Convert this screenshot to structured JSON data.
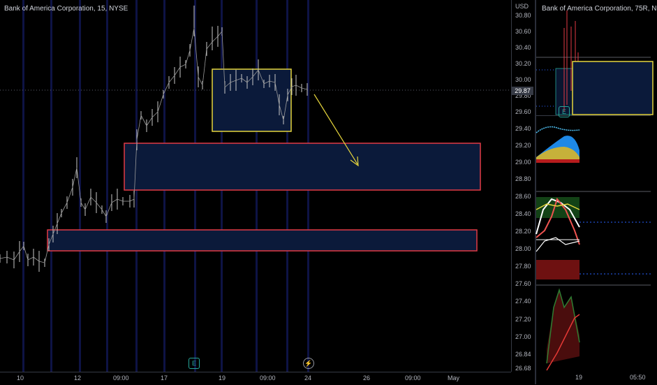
{
  "left_chart": {
    "title": "Bank of America Corporation, 15, NYSE",
    "currency": "USD",
    "current_price": "29.87",
    "price_ticks": [
      "30.80",
      "30.60",
      "30.40",
      "30.20",
      "30.00",
      "29.80",
      "29.60",
      "29.40",
      "29.20",
      "29.00",
      "28.80",
      "28.60",
      "28.40",
      "28.20",
      "28.00",
      "27.80",
      "27.60",
      "27.40",
      "27.20",
      "27.00",
      "26.84",
      "26.68"
    ],
    "time_ticks": [
      "10",
      "12",
      "09:00",
      "17",
      "19",
      "09:00",
      "24",
      "26",
      "09:00",
      "May"
    ],
    "earnings_icon": "E",
    "dividend_icon": "⚡"
  },
  "right_chart": {
    "title": "Bank of America Corporation, 75R, N",
    "earnings_icon": "E",
    "time_ticks": [
      "19",
      "05:50"
    ]
  },
  "colors": {
    "background": "#000000",
    "yellow_box": "#e6d53c",
    "red_box": "#e23a45",
    "box_fill": "#0b1a3a",
    "session_band": "#1a237e",
    "candle": "#c8c8c8",
    "axis_text": "#b2b5be"
  }
}
